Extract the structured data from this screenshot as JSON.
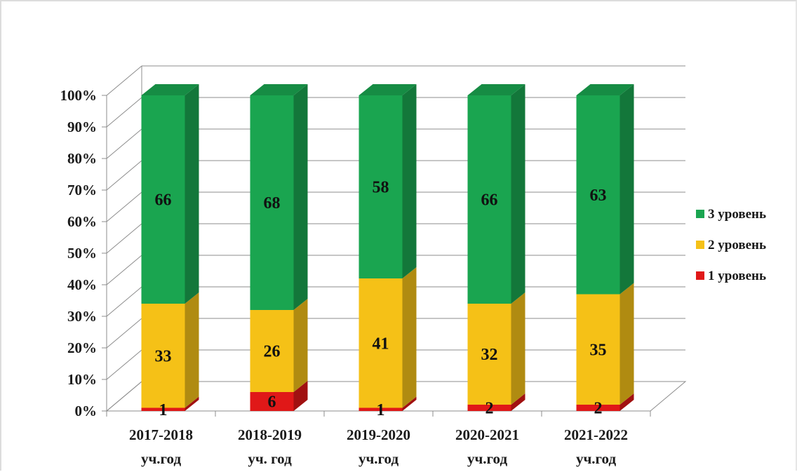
{
  "chart_data": {
    "type": "bar",
    "stacked": true,
    "percent_stacked": true,
    "three_d": true,
    "categories": [
      [
        "2017-2018",
        "уч.год"
      ],
      [
        "2018-2019",
        "уч. год"
      ],
      [
        "2019-2020",
        "уч.год"
      ],
      [
        "2020-2021",
        "уч.год"
      ],
      [
        "2021-2022",
        "уч.год"
      ]
    ],
    "series": [
      {
        "name": "1 уровень",
        "values": [
          1,
          6,
          1,
          2,
          2
        ],
        "color": "#e01818"
      },
      {
        "name": "2 уровень",
        "values": [
          33,
          26,
          41,
          32,
          35
        ],
        "color": "#f5c117"
      },
      {
        "name": "3 уровень",
        "values": [
          66,
          68,
          58,
          66,
          63
        ],
        "color": "#1aa550"
      }
    ],
    "legend_order": [
      "3 уровень",
      "2 уровень",
      "1 уровень"
    ],
    "y_ticks": [
      "0%",
      "10%",
      "20%",
      "30%",
      "40%",
      "50%",
      "60%",
      "70%",
      "80%",
      "90%",
      "100%"
    ],
    "ylim": [
      0,
      100
    ],
    "grid": true,
    "legend_position": "right"
  }
}
